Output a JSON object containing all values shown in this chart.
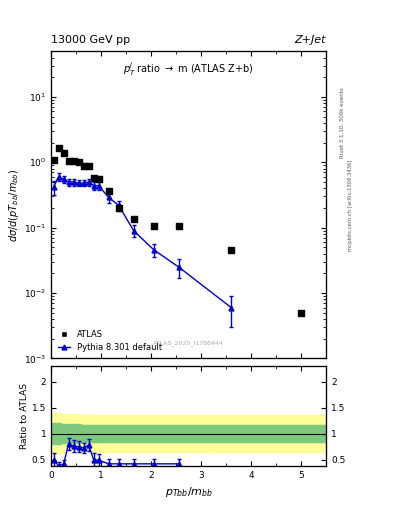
{
  "title_top": "13000 GeV pp",
  "title_right": "Z+Jet",
  "plot_label": "p_T^j ratio -> m (ATLAS Z+b)",
  "watermark": "ATLAS_2020_I1788444",
  "right_label_top": "Rivet 3.1.10, 300k events",
  "right_label_bot": "mcplots.cern.ch [arXiv:1306.3436]",
  "xlabel": "p_{Tbb}/m_{bb}",
  "ylim_main": [
    0.001,
    50
  ],
  "ylim_ratio": [
    0.38,
    2.3
  ],
  "xlim": [
    0,
    5.5
  ],
  "atlas_x": [
    0.05,
    0.15,
    0.25,
    0.35,
    0.45,
    0.55,
    0.65,
    0.75,
    0.85,
    0.95,
    1.15,
    1.35,
    1.65,
    2.05,
    2.55,
    3.6,
    5.0
  ],
  "atlas_y": [
    1.1,
    1.65,
    1.4,
    1.05,
    1.05,
    1.0,
    0.88,
    0.88,
    0.58,
    0.55,
    0.36,
    0.2,
    0.135,
    0.105,
    0.105,
    0.046,
    0.005
  ],
  "pythia_x": [
    0.05,
    0.15,
    0.25,
    0.35,
    0.45,
    0.55,
    0.65,
    0.75,
    0.85,
    0.95,
    1.15,
    1.35,
    1.65,
    2.05,
    2.55,
    3.6
  ],
  "pythia_y": [
    0.42,
    0.6,
    0.55,
    0.5,
    0.5,
    0.48,
    0.48,
    0.5,
    0.44,
    0.44,
    0.29,
    0.22,
    0.09,
    0.046,
    0.025,
    0.006
  ],
  "pythia_yerr_lo": [
    0.1,
    0.09,
    0.07,
    0.06,
    0.06,
    0.05,
    0.05,
    0.06,
    0.06,
    0.06,
    0.05,
    0.04,
    0.018,
    0.01,
    0.008,
    0.003
  ],
  "pythia_yerr_hi": [
    0.1,
    0.09,
    0.07,
    0.06,
    0.06,
    0.05,
    0.05,
    0.06,
    0.06,
    0.06,
    0.05,
    0.04,
    0.018,
    0.01,
    0.008,
    0.003
  ],
  "ratio_x": [
    0.05,
    0.15,
    0.25,
    0.35,
    0.45,
    0.55,
    0.65,
    0.75,
    0.85,
    0.95,
    1.15,
    1.35,
    1.65,
    2.05,
    2.55
  ],
  "ratio_y": [
    0.5,
    0.38,
    0.42,
    0.8,
    0.76,
    0.75,
    0.73,
    0.78,
    0.5,
    0.49,
    0.42,
    0.42,
    0.42,
    0.42,
    0.42
  ],
  "ratio_yerr_lo": [
    0.12,
    0.07,
    0.07,
    0.12,
    0.12,
    0.1,
    0.1,
    0.12,
    0.12,
    0.12,
    0.09,
    0.09,
    0.09,
    0.09,
    0.09
  ],
  "ratio_yerr_hi": [
    0.12,
    0.07,
    0.07,
    0.12,
    0.12,
    0.1,
    0.1,
    0.12,
    0.12,
    0.12,
    0.09,
    0.09,
    0.09,
    0.09,
    0.09
  ],
  "band_edges": [
    0.0,
    0.2,
    0.6,
    1.2,
    3.2,
    5.5
  ],
  "band_green_lo": [
    0.8,
    0.82,
    0.84,
    0.84,
    0.84,
    0.84
  ],
  "band_green_hi": [
    1.2,
    1.18,
    1.16,
    1.16,
    1.16,
    1.16
  ],
  "band_yellow_lo": [
    0.6,
    0.62,
    0.65,
    0.65,
    0.65,
    0.65
  ],
  "band_yellow_hi": [
    1.4,
    1.38,
    1.35,
    1.35,
    1.35,
    1.35
  ],
  "color_atlas": "#000000",
  "color_pythia": "#0000cc",
  "color_green_band": "#7fc97f",
  "color_yellow_band": "#ffff99",
  "bg_color": "#ffffff"
}
